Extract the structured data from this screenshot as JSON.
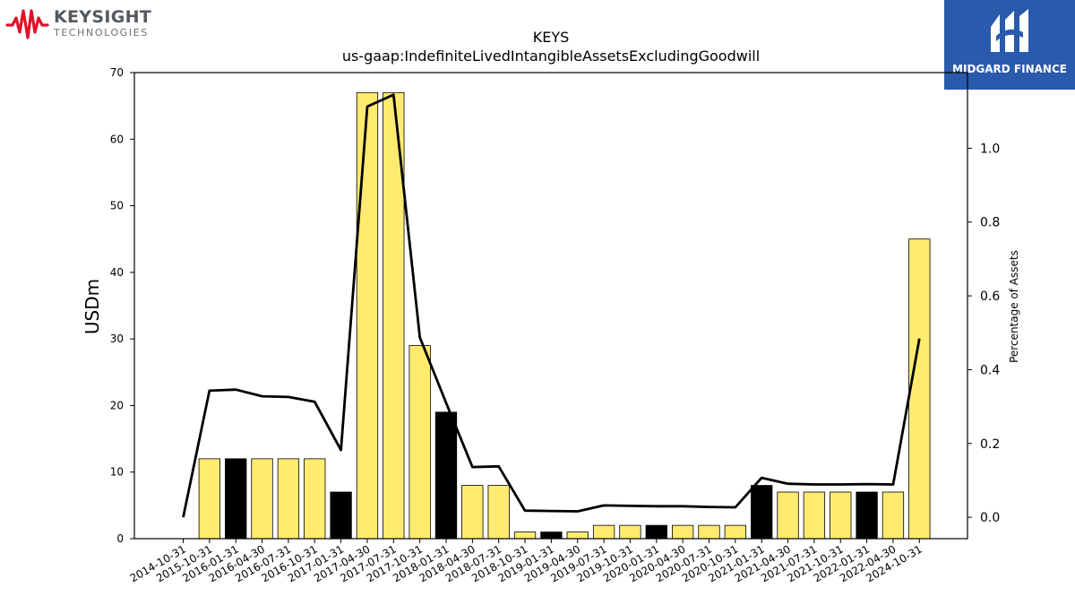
{
  "branding": {
    "left_name": "KEYSIGHT",
    "left_sub": "TECHNOLOGIES",
    "left_color": "#e0102a",
    "right_name": "MIDGARD FINANCE",
    "right_bg": "#2a5aab"
  },
  "chart_data": {
    "type": "bar",
    "title": "KEYS",
    "subtitle": "us-gaap:IndefiniteLivedIntangibleAssetsExcludingGoodwill",
    "ylabel": "USDm",
    "y2label": "Percentage of Assets",
    "ylim": [
      0,
      70
    ],
    "y2lim": [
      -0.058,
      1.205
    ],
    "yticks": [
      0,
      10,
      20,
      30,
      40,
      50,
      60,
      70
    ],
    "y2ticks": [
      0.0,
      0.2,
      0.4,
      0.6,
      0.8,
      1.0
    ],
    "grid": false,
    "bar_colors": {
      "annual": "#ffeb70",
      "quarter_q1": "#000000"
    },
    "categories": [
      "2014-10-31",
      "2015-10-31",
      "2016-01-31",
      "2016-04-30",
      "2016-07-31",
      "2016-10-31",
      "2017-01-31",
      "2017-04-30",
      "2017-07-31",
      "2017-10-31",
      "2018-01-31",
      "2018-04-30",
      "2018-07-31",
      "2018-10-31",
      "2019-01-31",
      "2019-04-30",
      "2019-07-31",
      "2019-10-31",
      "2020-01-31",
      "2020-04-30",
      "2020-07-31",
      "2020-10-31",
      "2021-01-31",
      "2021-04-30",
      "2021-07-31",
      "2021-10-31",
      "2022-01-31",
      "2022-04-30",
      "2024-10-31"
    ],
    "series": [
      {
        "type": "bar",
        "axis": "left",
        "values": [
          0,
          12,
          12,
          12,
          12,
          12,
          7,
          67,
          67,
          29,
          19,
          8,
          8,
          1,
          1,
          1,
          2,
          2,
          2,
          2,
          2,
          2,
          8,
          7,
          7,
          7,
          7,
          7,
          45
        ],
        "colors": [
          "#ffeb70",
          "#ffeb70",
          "#000000",
          "#ffeb70",
          "#ffeb70",
          "#ffeb70",
          "#000000",
          "#ffeb70",
          "#ffeb70",
          "#ffeb70",
          "#000000",
          "#ffeb70",
          "#ffeb70",
          "#ffeb70",
          "#000000",
          "#ffeb70",
          "#ffeb70",
          "#ffeb70",
          "#000000",
          "#ffeb70",
          "#ffeb70",
          "#ffeb70",
          "#000000",
          "#ffeb70",
          "#ffeb70",
          "#ffeb70",
          "#000000",
          "#ffeb70",
          "#ffeb70"
        ]
      },
      {
        "type": "line",
        "axis": "right",
        "color": "#000000",
        "values": [
          0.0,
          0.343,
          0.346,
          0.328,
          0.326,
          0.313,
          0.182,
          1.113,
          1.145,
          0.487,
          0.31,
          0.136,
          0.138,
          0.018,
          0.017,
          0.016,
          0.032,
          0.031,
          0.03,
          0.03,
          0.028,
          0.027,
          0.107,
          0.091,
          0.089,
          0.089,
          0.09,
          0.089,
          0.484
        ]
      }
    ]
  }
}
